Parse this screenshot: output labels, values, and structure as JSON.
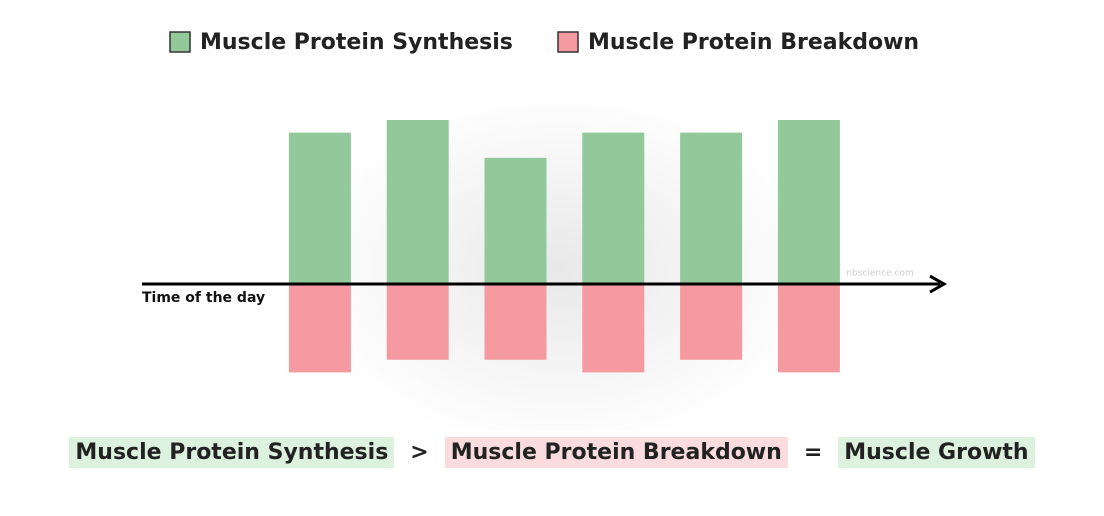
{
  "chart_data": {
    "type": "bar",
    "categories": [
      null,
      null,
      null,
      null,
      null,
      null
    ],
    "series": [
      {
        "name": "Muscle Protein Synthesis",
        "color": "#93c89a",
        "values": [
          12,
          13,
          10,
          12,
          12,
          13
        ]
      },
      {
        "name": "Muscle Protein Breakdown",
        "color": "#f59aa0",
        "values": [
          -7,
          -6,
          -6,
          -7,
          -6,
          -7
        ]
      }
    ],
    "ylim": [
      -8,
      13
    ],
    "x_label": "Time of the day",
    "watermark": "nbscience.com",
    "legend": "top"
  },
  "equation": [
    {
      "text": "Muscle Protein Synthesis",
      "color": "#dcf1de"
    },
    {
      "text": ">"
    },
    {
      "text": "Muscle Protein Breakdown",
      "color": "#fadcdf"
    },
    {
      "text": "="
    },
    {
      "text": "Muscle Growth",
      "color": "#dcf1de"
    }
  ]
}
